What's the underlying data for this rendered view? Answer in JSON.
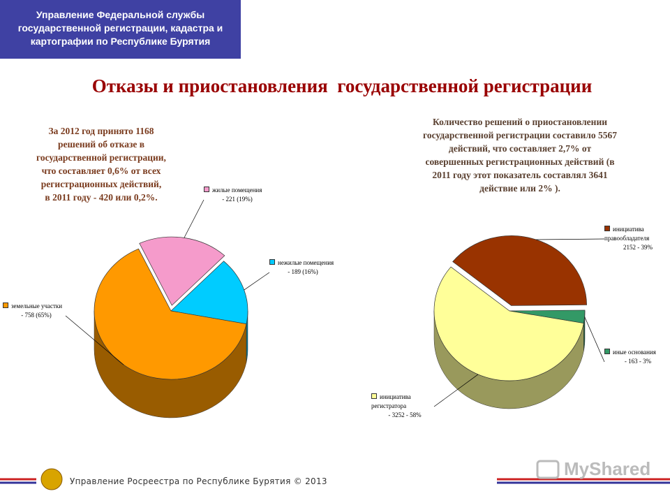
{
  "header": {
    "organization": "Управление Федеральной службы государственной регистрации, кадастра и картографии по Республике Бурятия"
  },
  "title": "Отказы и приостановления  государственной регистрации",
  "footer": {
    "text": "Управление Росреестра по Республике Бурятия © 2013",
    "watermark": "MyShared"
  },
  "chart_data": [
    {
      "type": "pie",
      "annotation": [
        "За 2012 год принято 1168",
        "решений об отказе в",
        "государственной регистрации,",
        "что составляет 0,6% от всех",
        "регистрационных действий,",
        "в 2011 году - 420 или 0,2%."
      ],
      "categories": [
        "жилые помещения",
        "нежилые помещения",
        "земельные участки"
      ],
      "values": [
        19,
        16,
        65
      ],
      "value_labels": [
        "- 221 (19%)",
        "- 189 (16%)",
        "- 758 (65%)"
      ],
      "colors": [
        "#f59bcb",
        "#00ccff",
        "#ff9900"
      ]
    },
    {
      "type": "pie",
      "annotation": [
        "Количество решений о приостановлении",
        "государственной регистрации составило 5567",
        "действий, что составляет 2,7% от",
        "совершенных регистрационных действий (в",
        "2011 году этот показатель составлял 3641",
        "действие или 2% )."
      ],
      "categories": [
        "инициатива правообладателя",
        "иные основания",
        "инициатива регистратора"
      ],
      "values": [
        39,
        3,
        58
      ],
      "value_labels": [
        "2152 - 39%",
        "- 163 - 3%",
        "- 3252 - 58%"
      ],
      "colors": [
        "#993300",
        "#339966",
        "#ffff99"
      ]
    }
  ]
}
